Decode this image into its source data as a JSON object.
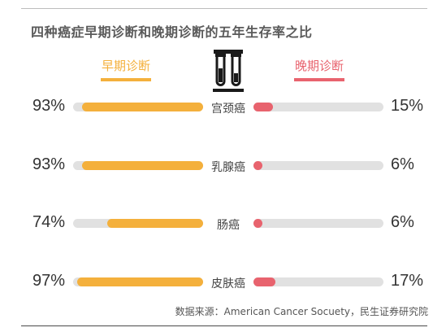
{
  "title": "四种癌症早期诊断和晚期诊断的五年生存率之比",
  "legend": {
    "early": "早期诊断",
    "late": "晚期诊断"
  },
  "icon": "test-tubes-icon",
  "colors": {
    "early": "#f4b03c",
    "late": "#e8636e",
    "track": "#e1e1e1"
  },
  "source": "数据来源：American Cancer Socuety，民生证券研究院",
  "chart_data": {
    "type": "bar",
    "categories": [
      "宫颈癌",
      "乳腺癌",
      "肠癌",
      "皮肤癌"
    ],
    "series": [
      {
        "name": "早期诊断",
        "values": [
          93,
          93,
          74,
          97
        ],
        "labels": [
          "93%",
          "93%",
          "74%",
          "97%"
        ]
      },
      {
        "name": "晚期诊断",
        "values": [
          15,
          6,
          6,
          17
        ],
        "labels": [
          "15%",
          "6%",
          "6%",
          "17%"
        ]
      }
    ],
    "unit": "%",
    "ylim": [
      0,
      100
    ],
    "title": "四种癌症早期诊断和晚期诊断的五年生存率之比"
  }
}
